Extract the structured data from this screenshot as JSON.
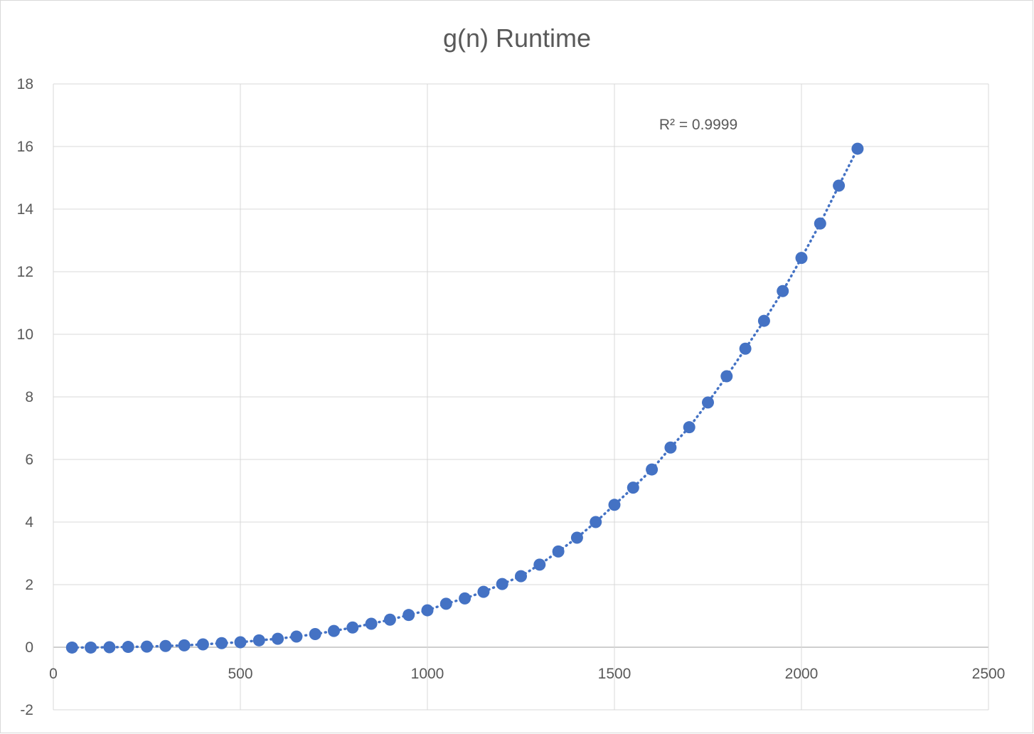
{
  "chart_data": {
    "type": "scatter",
    "title": "g(n) Runtime",
    "xlabel": "",
    "ylabel": "",
    "xlim": [
      0,
      2500
    ],
    "ylim": [
      -2,
      18
    ],
    "x_ticks": [
      "0",
      "500",
      "1000",
      "1500",
      "2000",
      "2500"
    ],
    "y_ticks": [
      "-2",
      "0",
      "2",
      "4",
      "6",
      "8",
      "10",
      "12",
      "14",
      "16",
      "18"
    ],
    "grid": true,
    "legend": "none",
    "annotation": "R² = 0.9999",
    "series": [
      {
        "marker_color": "#4472C4",
        "trendline": "dotted",
        "points": [
          [
            50,
            -0.01
          ],
          [
            100,
            -0.01
          ],
          [
            150,
            0.0
          ],
          [
            200,
            0.01
          ],
          [
            250,
            0.02
          ],
          [
            300,
            0.04
          ],
          [
            350,
            0.06
          ],
          [
            400,
            0.09
          ],
          [
            450,
            0.13
          ],
          [
            500,
            0.16
          ],
          [
            550,
            0.22
          ],
          [
            600,
            0.27
          ],
          [
            650,
            0.34
          ],
          [
            700,
            0.42
          ],
          [
            750,
            0.52
          ],
          [
            800,
            0.63
          ],
          [
            850,
            0.75
          ],
          [
            900,
            0.88
          ],
          [
            950,
            1.03
          ],
          [
            1000,
            1.18
          ],
          [
            1050,
            1.39
          ],
          [
            1100,
            1.56
          ],
          [
            1150,
            1.77
          ],
          [
            1200,
            2.02
          ],
          [
            1250,
            2.27
          ],
          [
            1300,
            2.64
          ],
          [
            1350,
            3.06
          ],
          [
            1400,
            3.5
          ],
          [
            1450,
            4.0
          ],
          [
            1500,
            4.55
          ],
          [
            1550,
            5.1
          ],
          [
            1600,
            5.68
          ],
          [
            1650,
            6.38
          ],
          [
            1700,
            7.03
          ],
          [
            1750,
            7.82
          ],
          [
            1800,
            8.66
          ],
          [
            1850,
            9.54
          ],
          [
            1900,
            10.43
          ],
          [
            1950,
            11.38
          ],
          [
            2000,
            12.44
          ],
          [
            2050,
            13.54
          ],
          [
            2100,
            14.75
          ],
          [
            2150,
            15.93
          ]
        ]
      }
    ]
  }
}
